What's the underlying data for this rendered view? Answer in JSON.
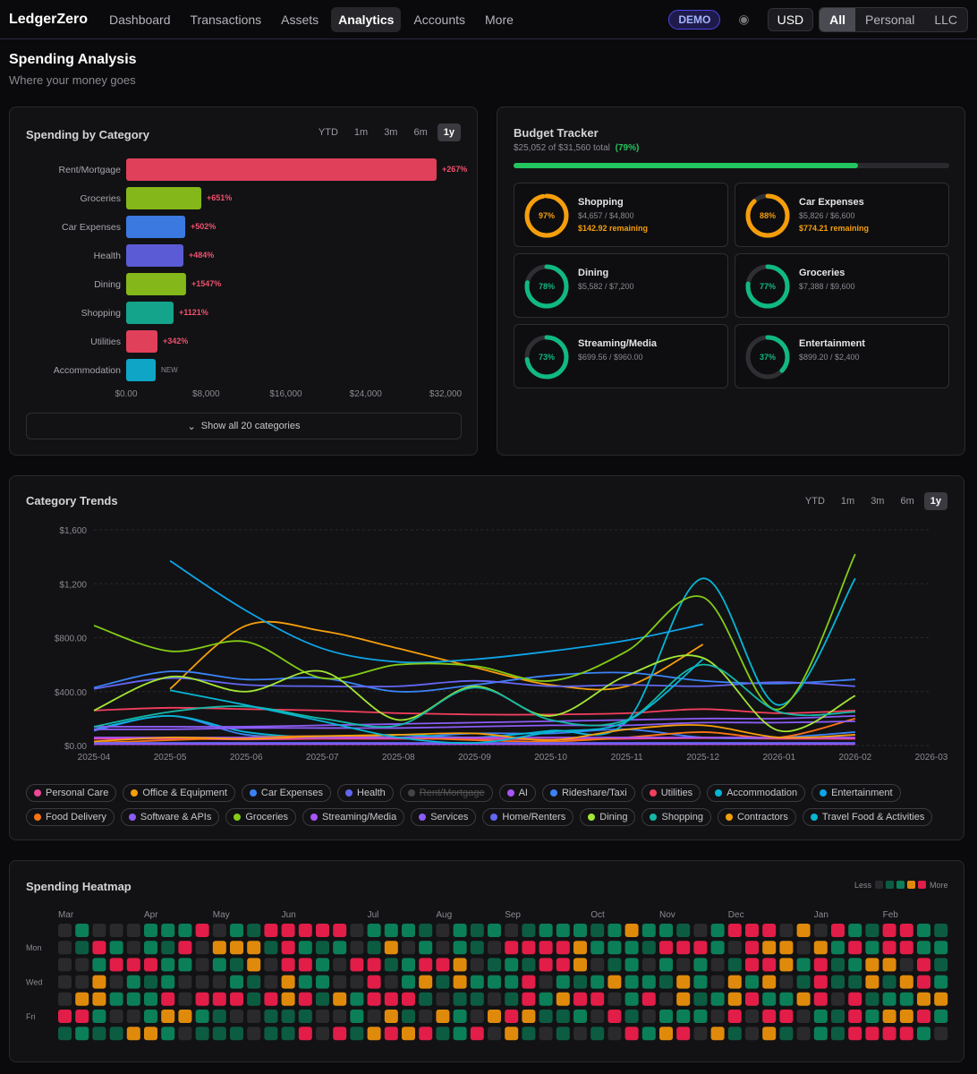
{
  "nav": {
    "brand": "LedgerZero",
    "items": [
      "Dashboard",
      "Transactions",
      "Assets",
      "Analytics",
      "Accounts",
      "More"
    ],
    "active": 3,
    "badge": "DEMO",
    "currency": "USD",
    "scopes": [
      "All",
      "Personal",
      "LLC"
    ],
    "active_scope": 0
  },
  "header": {
    "title": "Spending Analysis",
    "subtitle": "Where your money goes"
  },
  "budget": {
    "title": "Budget Tracker",
    "summary": "$25,052 of $31,560 total",
    "percent": 79,
    "percent_label": "(79%)",
    "cards": [
      {
        "name": "Shopping",
        "percent": 97,
        "percent_label": "97%",
        "amounts": "$4,657 / $4,800",
        "remaining": "$142.92 remaining",
        "color": "#f59e0b"
      },
      {
        "name": "Car Expenses",
        "percent": 88,
        "percent_label": "88%",
        "amounts": "$5,826 / $6,600",
        "remaining": "$774.21 remaining",
        "color": "#f59e0b"
      },
      {
        "name": "Dining",
        "percent": 78,
        "percent_label": "78%",
        "amounts": "$5,582 / $7,200",
        "color": "#10b981"
      },
      {
        "name": "Groceries",
        "percent": 77,
        "percent_label": "77%",
        "amounts": "$7,388 / $9,600",
        "color": "#10b981"
      },
      {
        "name": "Streaming/Media",
        "percent": 73,
        "percent_label": "73%",
        "amounts": "$699.56 / $960.00",
        "color": "#10b981"
      },
      {
        "name": "Entertainment",
        "percent": 37,
        "percent_label": "37%",
        "amounts": "$899.20 / $2,400",
        "color": "#10b981"
      }
    ]
  },
  "chart_data": [
    {
      "type": "bar",
      "title": "Spending by Category",
      "ranges": [
        "YTD",
        "1m",
        "3m",
        "6m",
        "1y"
      ],
      "active_range": 4,
      "categories": [
        "Rent/Mortgage",
        "Groceries",
        "Car Expenses",
        "Health",
        "Dining",
        "Shopping",
        "Utilities",
        "Accommodation"
      ],
      "values": [
        31100,
        7530,
        5920,
        5740,
        6000,
        4750,
        3140,
        2960
      ],
      "change_labels": [
        "+267%",
        "+651%",
        "+502%",
        "+484%",
        "+1547%",
        "+1121%",
        "+342%",
        "NEW"
      ],
      "colors": [
        "#e0405a",
        "#84b81a",
        "#3b78e0",
        "#5b5bd6",
        "#84b81a",
        "#14a38b",
        "#e0405a",
        "#0ea5c6"
      ],
      "xlim": [
        0,
        32000
      ],
      "xticks": [
        {
          "value": 0,
          "label": "$0.00"
        },
        {
          "value": 8000,
          "label": "$8,000"
        },
        {
          "value": 16000,
          "label": "$16,000"
        },
        {
          "value": 24000,
          "label": "$24,000"
        },
        {
          "value": 32000,
          "label": "$32,000"
        }
      ],
      "button": "Show all 20 categories"
    },
    {
      "type": "line",
      "title": "Category Trends",
      "ranges": [
        "YTD",
        "1m",
        "3m",
        "6m",
        "1y"
      ],
      "active_range": 4,
      "x": [
        "2025-04",
        "2025-05",
        "2025-06",
        "2025-07",
        "2025-08",
        "2025-09",
        "2025-10",
        "2025-11",
        "2025-12",
        "2026-01",
        "2026-02"
      ],
      "xticks": [
        "2025-04",
        "2025-05",
        "2025-06",
        "2025-07",
        "2025-08",
        "2025-09",
        "2025-10",
        "2025-11",
        "2025-12",
        "2026-01",
        "2026-02",
        "2026-03"
      ],
      "ylim": [
        0,
        1600
      ],
      "yticks": [
        {
          "value": 0,
          "label": "$0.00"
        },
        {
          "value": 400,
          "label": "$400.00"
        },
        {
          "value": 800,
          "label": "$800.00"
        },
        {
          "value": 1200,
          "label": "$1,200"
        },
        {
          "value": 1600,
          "label": "$1,600"
        }
      ],
      "grid": true,
      "series": [
        {
          "name": "Personal Care",
          "color": "#ec4899",
          "values": [
            50,
            50,
            45,
            50,
            50,
            50,
            45,
            50,
            55,
            50,
            50
          ]
        },
        {
          "name": "Office & Equipment",
          "color": "#f59e0b",
          "values": [
            null,
            420,
            890,
            850,
            720,
            580,
            450,
            440,
            750,
            null,
            null
          ]
        },
        {
          "name": "Car Expenses",
          "color": "#3b82f6",
          "values": [
            430,
            550,
            490,
            500,
            400,
            450,
            520,
            540,
            480,
            460,
            490
          ]
        },
        {
          "name": "Health",
          "color": "#6366f1",
          "values": [
            420,
            500,
            450,
            440,
            440,
            480,
            440,
            450,
            440,
            470,
            440
          ]
        },
        {
          "name": "Rent/Mortgage",
          "color": "#ef4444",
          "hidden": true,
          "values": [
            null,
            null,
            null,
            null,
            null,
            null,
            null,
            null,
            null,
            null,
            null
          ]
        },
        {
          "name": "AI",
          "color": "#a855f7",
          "values": [
            10,
            10,
            10,
            10,
            10,
            10,
            10,
            10,
            10,
            10,
            10
          ]
        },
        {
          "name": "Rideshare/Taxi",
          "color": "#3b82f6",
          "values": [
            110,
            220,
            80,
            70,
            60,
            90,
            90,
            120,
            60,
            60,
            100
          ]
        },
        {
          "name": "Utilities",
          "color": "#f43f5e",
          "values": [
            260,
            280,
            270,
            260,
            240,
            230,
            230,
            240,
            270,
            240,
            260
          ]
        },
        {
          "name": "Accommodation",
          "color": "#06b6d4",
          "values": [
            120,
            220,
            100,
            60,
            80,
            60,
            110,
            180,
            1240,
            300,
            1240
          ]
        },
        {
          "name": "Entertainment",
          "color": "#0ea5e9",
          "values": [
            null,
            1370,
            1000,
            720,
            620,
            640,
            700,
            780,
            900,
            null,
            null
          ]
        },
        {
          "name": "Food Delivery",
          "color": "#f97316",
          "values": [
            20,
            40,
            60,
            70,
            60,
            40,
            30,
            60,
            100,
            60,
            200
          ]
        },
        {
          "name": "Software & APIs",
          "color": "#8b5cf6",
          "values": [
            120,
            120,
            130,
            130,
            130,
            140,
            150,
            150,
            170,
            170,
            180
          ]
        },
        {
          "name": "Groceries",
          "color": "#84cc16",
          "values": [
            890,
            700,
            770,
            500,
            600,
            590,
            480,
            700,
            1100,
            270,
            1420
          ]
        },
        {
          "name": "Streaming/Media",
          "color": "#a855f7",
          "values": [
            60,
            60,
            60,
            60,
            60,
            60,
            60,
            60,
            60,
            60,
            60
          ]
        },
        {
          "name": "Services",
          "color": "#8b5cf6",
          "values": [
            140,
            140,
            140,
            150,
            160,
            170,
            180,
            190,
            200,
            200,
            220
          ]
        },
        {
          "name": "Home/Renters",
          "color": "#6366f1",
          "values": [
            20,
            20,
            20,
            20,
            20,
            20,
            20,
            20,
            20,
            20,
            20
          ]
        },
        {
          "name": "Dining",
          "color": "#a3e635",
          "values": [
            260,
            510,
            400,
            550,
            190,
            440,
            220,
            520,
            650,
            110,
            370
          ]
        },
        {
          "name": "Shopping",
          "color": "#14b8a6",
          "values": [
            140,
            250,
            290,
            200,
            150,
            430,
            190,
            190,
            600,
            250,
            250
          ]
        },
        {
          "name": "Contractors",
          "color": "#f59e0b",
          "values": [
            30,
            60,
            50,
            70,
            80,
            90,
            40,
            120,
            150,
            60,
            80
          ]
        },
        {
          "name": "Travel Food & Activities",
          "color": "#06b6d4",
          "values": [
            null,
            410,
            300,
            180,
            60,
            20,
            100,
            180,
            640,
            null,
            null
          ]
        }
      ]
    },
    {
      "type": "heatmap",
      "title": "Spending Heatmap",
      "legend_less": "Less",
      "legend_more": "More",
      "level_colors": [
        "#2a2a2d",
        "#0c5c42",
        "#0b7f58",
        "#e08a0b",
        "#e11d48"
      ],
      "month_labels": [
        {
          "label": "Mar",
          "week": 0
        },
        {
          "label": "Apr",
          "week": 5
        },
        {
          "label": "May",
          "week": 9
        },
        {
          "label": "Jun",
          "week": 13
        },
        {
          "label": "Jul",
          "week": 18
        },
        {
          "label": "Aug",
          "week": 22
        },
        {
          "label": "Sep",
          "week": 26
        },
        {
          "label": "Oct",
          "week": 31
        },
        {
          "label": "Nov",
          "week": 35
        },
        {
          "label": "Dec",
          "week": 39
        },
        {
          "label": "Jan",
          "week": 44
        },
        {
          "label": "Feb",
          "week": 48
        }
      ],
      "row_labels": [
        {
          "label": "Mon",
          "row": 1
        },
        {
          "label": "Wed",
          "row": 3
        },
        {
          "label": "Fri",
          "row": 5
        }
      ],
      "weeks": [
        [
          0,
          0,
          0,
          0,
          0,
          4,
          1
        ],
        [
          2,
          1,
          0,
          0,
          3,
          4,
          2
        ],
        [
          0,
          4,
          2,
          3,
          3,
          2,
          1
        ],
        [
          0,
          2,
          4,
          0,
          2,
          0,
          1
        ],
        [
          0,
          0,
          4,
          2,
          2,
          0,
          3
        ],
        [
          2,
          2,
          4,
          1,
          2,
          2,
          3
        ],
        [
          2,
          1,
          2,
          2,
          4,
          3,
          2
        ],
        [
          2,
          4,
          2,
          0,
          0,
          3,
          0
        ],
        [
          4,
          0,
          0,
          0,
          4,
          2,
          1
        ],
        [
          0,
          3,
          2,
          0,
          4,
          1,
          1
        ],
        [
          2,
          3,
          1,
          2,
          4,
          0,
          1
        ],
        [
          1,
          3,
          3,
          1,
          1,
          0,
          0
        ],
        [
          4,
          1,
          0,
          0,
          4,
          1,
          1
        ],
        [
          4,
          4,
          4,
          3,
          3,
          1,
          1
        ],
        [
          4,
          2,
          4,
          2,
          4,
          1,
          4
        ],
        [
          4,
          1,
          2,
          2,
          1,
          0,
          0
        ],
        [
          4,
          2,
          0,
          0,
          3,
          0,
          4
        ],
        [
          0,
          0,
          4,
          0,
          2,
          2,
          1
        ],
        [
          2,
          1,
          4,
          4,
          4,
          0,
          3
        ],
        [
          2,
          3,
          1,
          0,
          4,
          3,
          4
        ],
        [
          2,
          0,
          2,
          2,
          4,
          1,
          3
        ],
        [
          1,
          2,
          4,
          3,
          1,
          0,
          4
        ],
        [
          0,
          0,
          4,
          1,
          0,
          3,
          1
        ],
        [
          2,
          2,
          3,
          3,
          1,
          2,
          2
        ],
        [
          1,
          1,
          0,
          2,
          1,
          0,
          4
        ],
        [
          2,
          0,
          1,
          2,
          0,
          3,
          0
        ],
        [
          0,
          4,
          2,
          2,
          1,
          4,
          3
        ],
        [
          1,
          4,
          1,
          4,
          4,
          3,
          1
        ],
        [
          2,
          4,
          4,
          0,
          2,
          1,
          0
        ],
        [
          2,
          4,
          4,
          2,
          3,
          1,
          1
        ],
        [
          2,
          3,
          3,
          1,
          4,
          2,
          0
        ],
        [
          1,
          2,
          0,
          2,
          4,
          0,
          1
        ],
        [
          2,
          2,
          1,
          3,
          0,
          4,
          0
        ],
        [
          3,
          2,
          2,
          2,
          2,
          1,
          4
        ],
        [
          2,
          1,
          0,
          2,
          4,
          0,
          2
        ],
        [
          2,
          4,
          2,
          1,
          0,
          2,
          3
        ],
        [
          1,
          4,
          0,
          3,
          3,
          2,
          4
        ],
        [
          0,
          4,
          2,
          2,
          1,
          2,
          0
        ],
        [
          2,
          2,
          0,
          0,
          2,
          0,
          3
        ],
        [
          4,
          0,
          1,
          3,
          3,
          4,
          1
        ],
        [
          4,
          4,
          4,
          2,
          4,
          0,
          0
        ],
        [
          4,
          3,
          4,
          3,
          2,
          4,
          3
        ],
        [
          0,
          3,
          3,
          0,
          2,
          4,
          1
        ],
        [
          3,
          0,
          2,
          1,
          3,
          0,
          0
        ],
        [
          0,
          3,
          4,
          4,
          4,
          2,
          2
        ],
        [
          4,
          2,
          1,
          1,
          0,
          1,
          1
        ],
        [
          2,
          4,
          2,
          1,
          4,
          4,
          4
        ],
        [
          1,
          2,
          3,
          3,
          1,
          2,
          4
        ],
        [
          4,
          4,
          3,
          1,
          2,
          3,
          4
        ],
        [
          4,
          4,
          0,
          3,
          2,
          3,
          4
        ],
        [
          2,
          2,
          4,
          4,
          3,
          4,
          2
        ],
        [
          1,
          2,
          1,
          2,
          3,
          2,
          0
        ]
      ]
    }
  ]
}
